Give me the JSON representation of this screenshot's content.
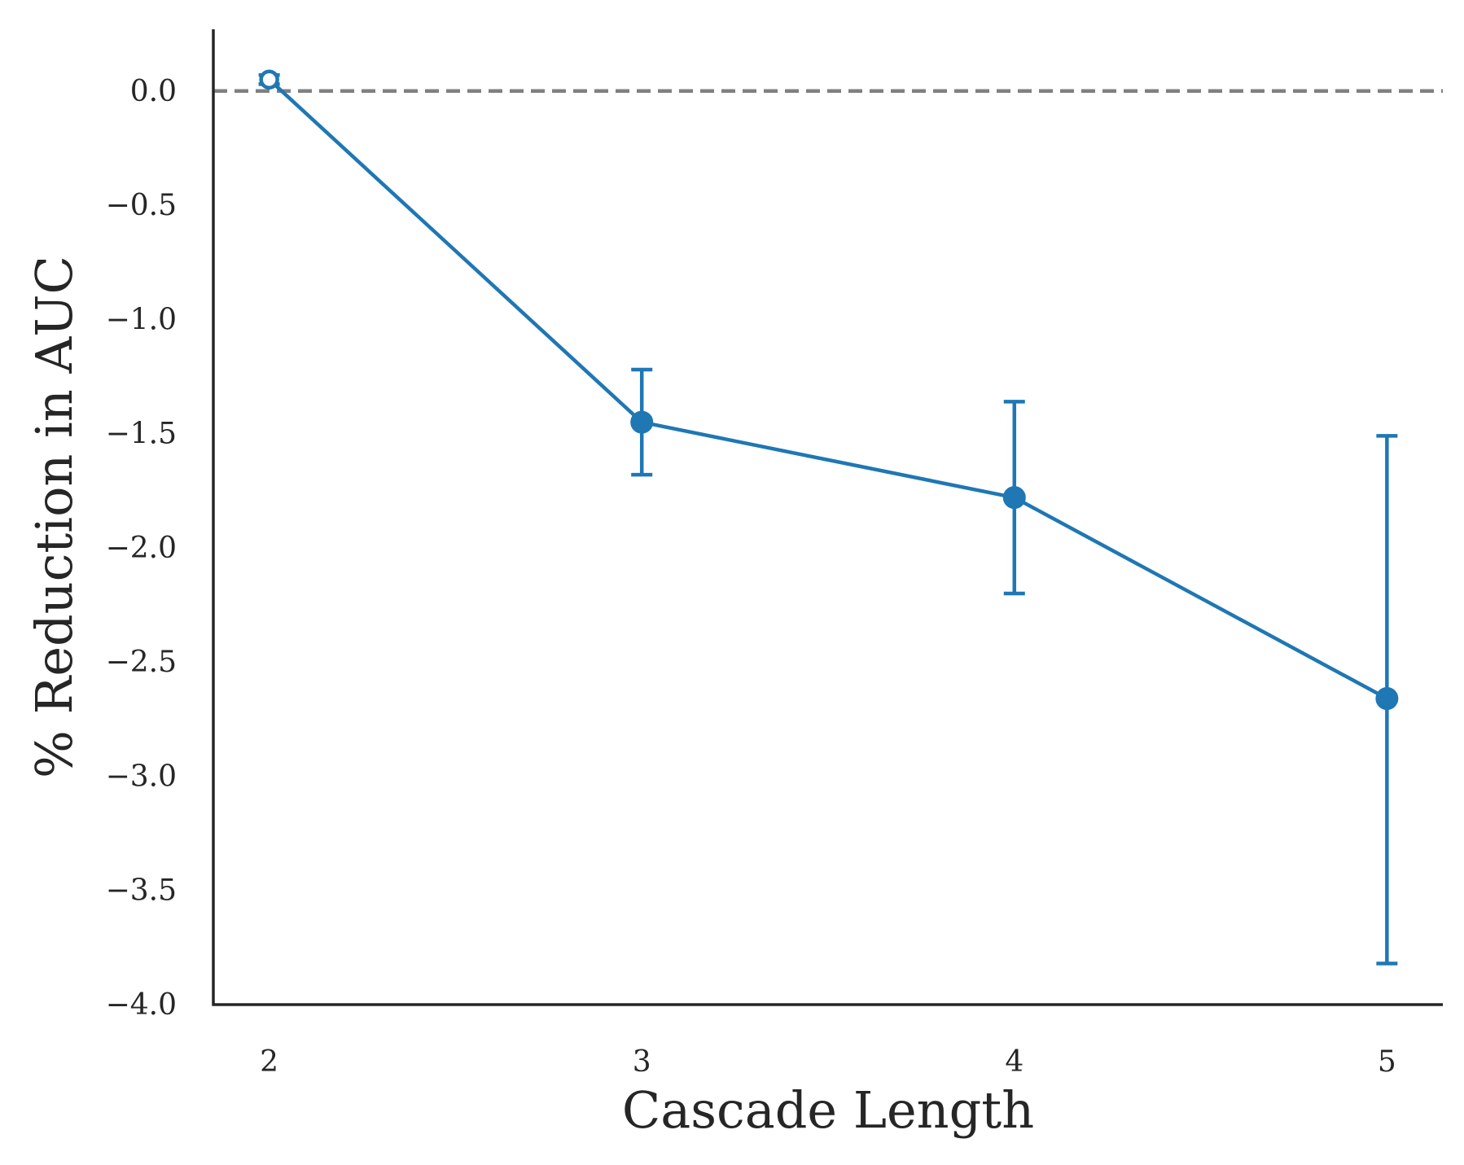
{
  "chart_data": {
    "type": "line",
    "title": "",
    "xlabel": "Cascade Length",
    "ylabel": "% Reduction in AUC",
    "x": [
      2,
      3,
      4,
      5
    ],
    "x_tick_labels": [
      "2",
      "3",
      "4",
      "5"
    ],
    "y_ticks": [
      0.0,
      -0.5,
      -1.0,
      -1.5,
      -2.0,
      -2.5,
      -3.0,
      -3.5,
      -4.0
    ],
    "y_tick_labels": [
      "0.0",
      "−0.5",
      "−1.0",
      "−1.5",
      "−2.0",
      "−2.5",
      "−3.0",
      "−3.5",
      "−4.0"
    ],
    "xlim": [
      1.85,
      5.15
    ],
    "ylim": [
      -4.0,
      0.27
    ],
    "grid": false,
    "legend": "none",
    "reference_line": {
      "y": 0.0,
      "style": "dashed",
      "color": "#808080"
    },
    "series": [
      {
        "color": "#1f77b4",
        "values": [
          0.05,
          -1.45,
          -1.78,
          -2.66
        ],
        "err_low": [
          0.03,
          -1.68,
          -2.2,
          -3.82
        ],
        "err_high": [
          0.07,
          -1.22,
          -1.36,
          -1.51
        ],
        "marker_filled": [
          false,
          true,
          true,
          true
        ]
      }
    ]
  }
}
